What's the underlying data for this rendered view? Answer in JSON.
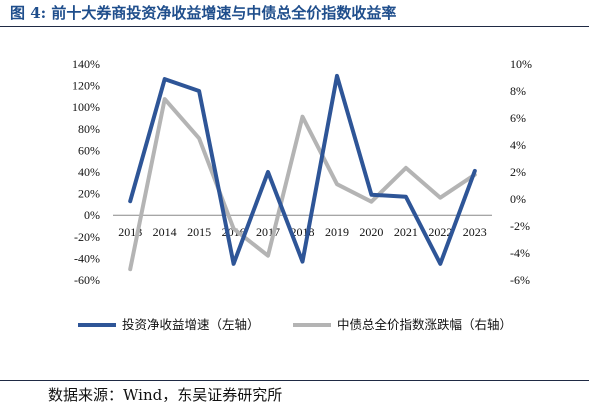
{
  "figure": {
    "title": "图 4: 前十大券商投资净收益增速与中债总全价指数收益率",
    "source": "数据来源：Wind，东吴证券研究所"
  },
  "chart_data": {
    "type": "line",
    "categories": [
      "2013",
      "2014",
      "2015",
      "2016",
      "2017",
      "2018",
      "2019",
      "2020",
      "2021",
      "2022",
      "2023"
    ],
    "left_axis": {
      "ylim": [
        -60,
        140
      ],
      "ticks": [
        "140%",
        "120%",
        "100%",
        "80%",
        "60%",
        "40%",
        "20%",
        "0%",
        "-20%",
        "-40%",
        "-60%"
      ]
    },
    "right_axis": {
      "ylim": [
        -6,
        10
      ],
      "ticks": [
        "10%",
        "8%",
        "6%",
        "4%",
        "2%",
        "0%",
        "-2%",
        "-4%",
        "-6%"
      ]
    },
    "series": [
      {
        "name": "投资净收益增速（左轴）",
        "axis": "left",
        "color": "#2e5597",
        "values": [
          13,
          126,
          115,
          -45,
          40,
          -43,
          129,
          19,
          17,
          -45,
          41
        ]
      },
      {
        "name": "中债总全价指数涨跌幅（右轴）",
        "axis": "right",
        "color": "#b4b4b4",
        "values": [
          -5.2,
          7.4,
          4.5,
          -2.2,
          -4.2,
          6.1,
          1.1,
          -0.2,
          2.3,
          0.1,
          1.8
        ]
      }
    ],
    "grid": false,
    "legend": "bottom"
  },
  "colors": {
    "title": "#1f4e8c",
    "rule": "#1f2a44"
  }
}
